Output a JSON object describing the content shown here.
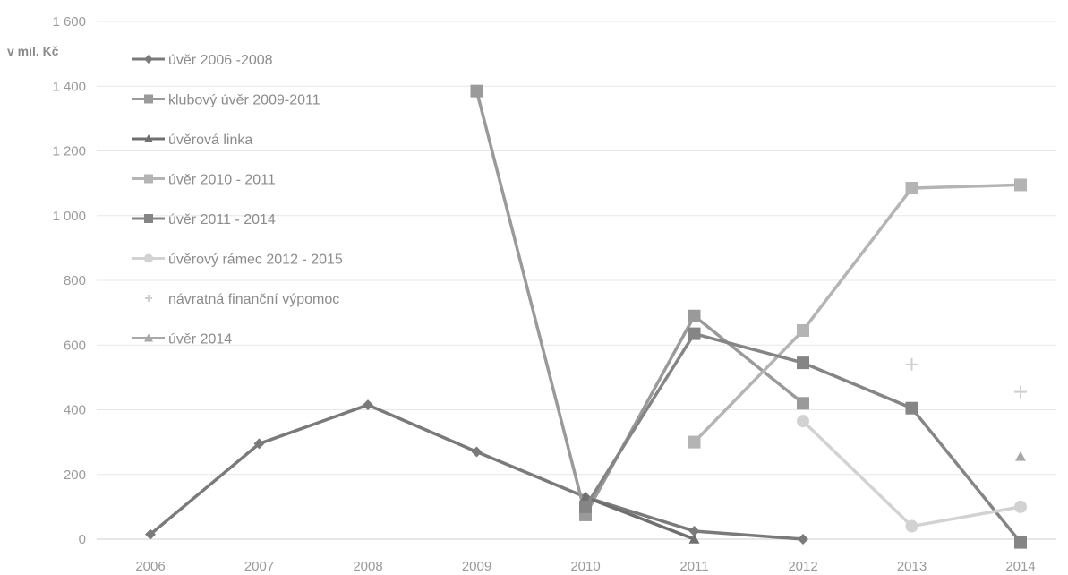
{
  "chart_data": {
    "type": "line",
    "ylabel": "v mil. Kč",
    "xlabel": "",
    "title": "",
    "categories": [
      "2006",
      "2007",
      "2008",
      "2009",
      "2010",
      "2011",
      "2012",
      "2013",
      "2014"
    ],
    "ylim": [
      0,
      1600
    ],
    "yticks": [
      0,
      200,
      400,
      600,
      800,
      1000,
      1200,
      1400,
      1600
    ],
    "ytick_labels": [
      "0",
      "200",
      "400",
      "600",
      "800",
      "1 000",
      "1 200",
      "1 400",
      "1 600"
    ],
    "grid": true,
    "legend_position": "top-left",
    "series": [
      {
        "name": "úvěr 2006 -2008",
        "marker": "diamond",
        "color": "#7a7a7a",
        "values": [
          15,
          295,
          415,
          270,
          130,
          25,
          0,
          null,
          null
        ]
      },
      {
        "name": "klubový úvěr 2009-2011",
        "marker": "square",
        "color": "#9a9a9a",
        "values": [
          null,
          null,
          null,
          1385,
          75,
          690,
          420,
          null,
          null
        ]
      },
      {
        "name": "úvěrová linka",
        "marker": "triangle",
        "color": "#6f6f6f",
        "values": [
          null,
          null,
          null,
          null,
          130,
          0,
          null,
          null,
          null
        ]
      },
      {
        "name": "úvěr 2010 - 2011",
        "marker": "square",
        "color": "#b4b4b4",
        "values": [
          null,
          null,
          null,
          null,
          null,
          300,
          645,
          1085,
          1095
        ]
      },
      {
        "name": "úvěr 2011 - 2014",
        "marker": "square",
        "color": "#858585",
        "values": [
          null,
          null,
          null,
          null,
          100,
          635,
          545,
          405,
          -10
        ]
      },
      {
        "name": "úvěrový rámec 2012 - 2015",
        "marker": "circle",
        "color": "#d2d2d2",
        "values": [
          null,
          null,
          null,
          null,
          null,
          null,
          365,
          40,
          100
        ]
      },
      {
        "name": "návratná finanční výpomoc",
        "marker": "plus",
        "color": "#cfcfcf",
        "values": [
          null,
          null,
          null,
          null,
          null,
          null,
          null,
          540,
          455
        ]
      },
      {
        "name": "úvěr 2014",
        "marker": "triangle",
        "color": "#a8a8a8",
        "values": [
          null,
          null,
          null,
          null,
          null,
          null,
          null,
          null,
          255
        ]
      }
    ]
  }
}
